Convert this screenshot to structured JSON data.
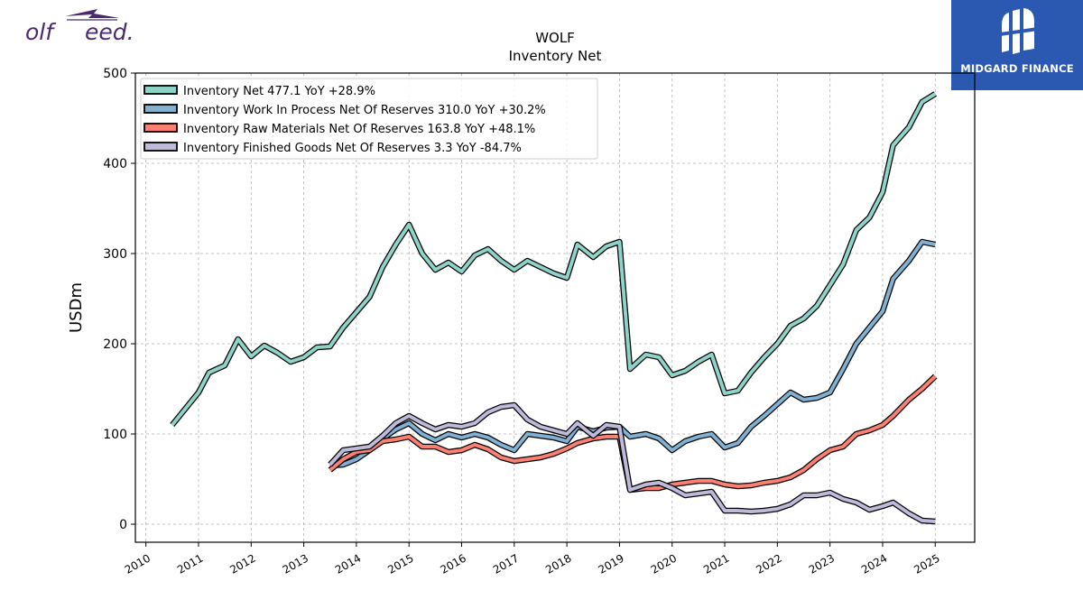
{
  "brand": {
    "left_text_a": "olf",
    "left_text_b": "eed.",
    "right_text": "MIDGARD FINANCE"
  },
  "colors": {
    "inventory_net": "#8dd3c7",
    "wip": "#80b1d3",
    "raw": "#fb8072",
    "finished": "#bebada",
    "brand_purple": "#4a2a6e",
    "brand_blue": "#2b58b0"
  },
  "chart_data": {
    "type": "line",
    "title": "WOLF",
    "subtitle": "Inventory Net",
    "ylabel": "USDm",
    "xlabel": "",
    "ylim": [
      -20,
      500
    ],
    "yticks": [
      0,
      100,
      200,
      300,
      400,
      500
    ],
    "xlim": [
      2009.8,
      2025.75
    ],
    "xticks": [
      "2010",
      "2011",
      "2012",
      "2013",
      "2014",
      "2015",
      "2016",
      "2017",
      "2018",
      "2019",
      "2020",
      "2021",
      "2022",
      "2023",
      "2024",
      "2025"
    ],
    "grid": true,
    "legend_position": "top-left",
    "series": [
      {
        "name": "Inventory Net  477.1 YoY +28.9%",
        "color_key": "inventory_net",
        "x": [
          2010.5,
          2010.75,
          2011.0,
          2011.2,
          2011.5,
          2011.75,
          2012.0,
          2012.25,
          2012.5,
          2012.75,
          2013.0,
          2013.25,
          2013.5,
          2013.75,
          2014.0,
          2014.25,
          2014.5,
          2014.75,
          2015.0,
          2015.25,
          2015.5,
          2015.75,
          2016.0,
          2016.25,
          2016.5,
          2016.75,
          2017.0,
          2017.25,
          2017.5,
          2017.75,
          2018.0,
          2018.2,
          2018.5,
          2018.75,
          2019.0,
          2019.2,
          2019.5,
          2019.75,
          2020.0,
          2020.25,
          2020.5,
          2020.75,
          2021.0,
          2021.25,
          2021.5,
          2021.75,
          2022.0,
          2022.25,
          2022.5,
          2022.75,
          2023.0,
          2023.25,
          2023.5,
          2023.75,
          2024.0,
          2024.2,
          2024.5,
          2024.75,
          2025.0
        ],
        "values": [
          110,
          128,
          146,
          168,
          176,
          205,
          186,
          198,
          190,
          180,
          185,
          196,
          197,
          218,
          235,
          252,
          285,
          310,
          332,
          300,
          282,
          290,
          280,
          298,
          305,
          292,
          282,
          292,
          285,
          278,
          273,
          310,
          296,
          308,
          313,
          172,
          188,
          185,
          165,
          170,
          180,
          188,
          145,
          148,
          168,
          185,
          200,
          220,
          228,
          242,
          265,
          288,
          326,
          340,
          368,
          420,
          440,
          468,
          477
        ]
      },
      {
        "name": "Inventory Work In Process Net Of Reserves  310.0 YoY +30.2%",
        "color_key": "wip",
        "x": [
          2013.5,
          2013.75,
          2014.0,
          2014.25,
          2014.5,
          2014.75,
          2015.0,
          2015.25,
          2015.5,
          2015.75,
          2016.0,
          2016.25,
          2016.5,
          2016.75,
          2017.0,
          2017.25,
          2017.5,
          2017.75,
          2018.0,
          2018.2,
          2018.5,
          2018.75,
          2019.0,
          2019.2,
          2019.5,
          2019.75,
          2020.0,
          2020.25,
          2020.5,
          2020.75,
          2021.0,
          2021.25,
          2021.5,
          2021.75,
          2022.0,
          2022.25,
          2022.5,
          2022.75,
          2023.0,
          2023.25,
          2023.5,
          2023.75,
          2024.0,
          2024.2,
          2024.5,
          2024.75,
          2025.0
        ],
        "values": [
          65,
          66,
          72,
          82,
          95,
          105,
          112,
          100,
          93,
          100,
          96,
          100,
          96,
          88,
          82,
          100,
          98,
          96,
          92,
          108,
          103,
          107,
          108,
          97,
          100,
          95,
          82,
          92,
          97,
          100,
          85,
          90,
          108,
          120,
          133,
          146,
          138,
          140,
          146,
          172,
          200,
          218,
          236,
          272,
          292,
          313,
          310
        ]
      },
      {
        "name": "Inventory Raw Materials Net Of Reserves  163.8 YoY +48.1%",
        "color_key": "raw",
        "x": [
          2013.5,
          2013.75,
          2014.0,
          2014.25,
          2014.5,
          2014.75,
          2015.0,
          2015.25,
          2015.5,
          2015.75,
          2016.0,
          2016.25,
          2016.5,
          2016.75,
          2017.0,
          2017.25,
          2017.5,
          2017.75,
          2018.0,
          2018.2,
          2018.5,
          2018.75,
          2019.0,
          2019.2,
          2019.5,
          2019.75,
          2020.0,
          2020.25,
          2020.5,
          2020.75,
          2021.0,
          2021.25,
          2021.5,
          2021.75,
          2022.0,
          2022.25,
          2022.5,
          2022.75,
          2023.0,
          2023.25,
          2023.5,
          2023.75,
          2024.0,
          2024.2,
          2024.5,
          2024.75,
          2025.0
        ],
        "values": [
          60,
          72,
          80,
          82,
          92,
          94,
          97,
          86,
          86,
          80,
          82,
          88,
          83,
          74,
          70,
          72,
          74,
          78,
          84,
          90,
          95,
          97,
          97,
          38,
          40,
          40,
          44,
          46,
          48,
          48,
          44,
          42,
          43,
          46,
          48,
          52,
          60,
          72,
          82,
          86,
          100,
          104,
          110,
          120,
          138,
          150,
          164
        ]
      },
      {
        "name": "Inventory Finished Goods Net Of Reserves  3.3 YoY -84.7%",
        "color_key": "finished",
        "x": [
          2013.5,
          2013.75,
          2014.0,
          2014.25,
          2014.5,
          2014.75,
          2015.0,
          2015.25,
          2015.5,
          2015.75,
          2016.0,
          2016.25,
          2016.5,
          2016.75,
          2017.0,
          2017.25,
          2017.5,
          2017.75,
          2018.0,
          2018.2,
          2018.5,
          2018.75,
          2019.0,
          2019.2,
          2019.5,
          2019.75,
          2020.0,
          2020.25,
          2020.5,
          2020.75,
          2021.0,
          2021.25,
          2021.5,
          2021.75,
          2022.0,
          2022.25,
          2022.5,
          2022.75,
          2023.0,
          2023.25,
          2023.5,
          2023.75,
          2024.0,
          2024.2,
          2024.5,
          2024.75,
          2025.0
        ],
        "values": [
          66,
          82,
          84,
          86,
          98,
          112,
          120,
          112,
          105,
          110,
          108,
          112,
          124,
          130,
          132,
          116,
          108,
          104,
          100,
          112,
          98,
          110,
          108,
          38,
          44,
          46,
          40,
          32,
          34,
          36,
          15,
          15,
          14,
          15,
          17,
          22,
          32,
          32,
          35,
          28,
          24,
          16,
          20,
          24,
          12,
          4,
          3
        ]
      }
    ]
  }
}
